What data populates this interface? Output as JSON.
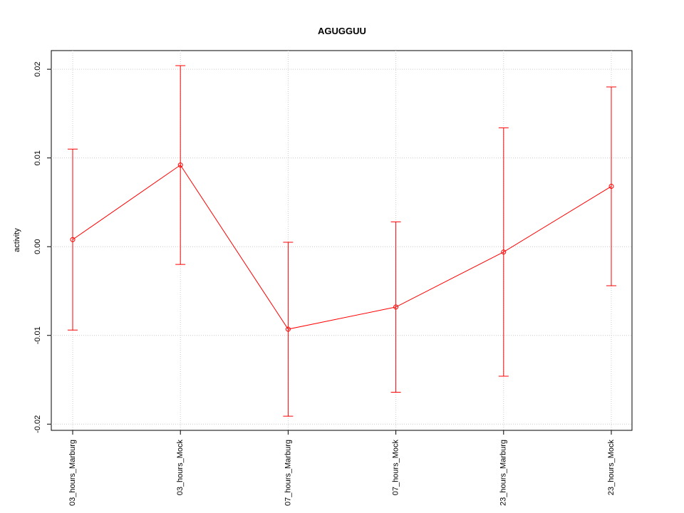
{
  "chart_data": {
    "type": "line",
    "title": "AGUGGUU",
    "y_label": "activity",
    "categories": [
      "03_hours_Marburg",
      "03_hours_Mock",
      "07_hours_Marburg",
      "07_hours_Mock",
      "23_hours_Marburg",
      "23_hours_Mock"
    ],
    "series": [
      {
        "color": "#ff0000",
        "values": [
          0.0008,
          0.0092,
          -0.0093,
          -0.0068,
          -0.0006,
          0.0068
        ],
        "errors": [
          0.0102,
          0.0112,
          0.0098,
          0.0096,
          0.014,
          0.0112
        ]
      }
    ],
    "ylim": [
      -0.0207,
      0.0221
    ],
    "yticks": [
      -0.02,
      -0.01,
      {
        "value": 0,
        "label": "0.00"
      },
      0.01,
      0.02
    ],
    "grid": true
  }
}
